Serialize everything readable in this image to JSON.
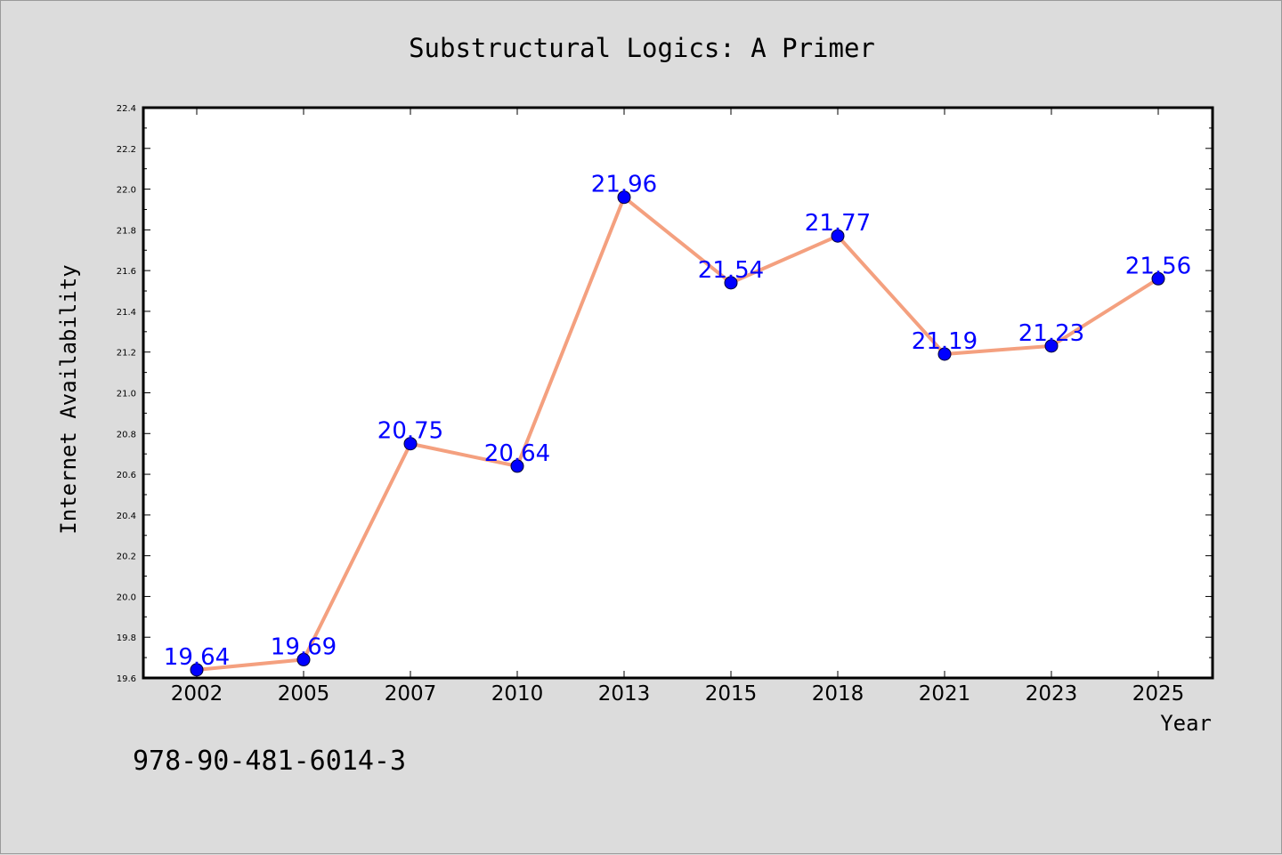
{
  "figure": {
    "background": "#dcdcdc",
    "plot_background": "#ffffff",
    "footer_text": "978-90-481-6014-3"
  },
  "chart_data": {
    "type": "line",
    "title": "Substructural Logics: A Primer",
    "xlabel": "Year",
    "ylabel": "Internet Availability",
    "categories": [
      "2002",
      "2005",
      "2007",
      "2010",
      "2013",
      "2015",
      "2018",
      "2021",
      "2023",
      "2025"
    ],
    "series": [
      {
        "values": [
          19.64,
          19.69,
          20.75,
          20.64,
          21.96,
          21.54,
          21.77,
          21.19,
          21.23,
          21.56
        ],
        "line_color": "#f4a07f",
        "marker_color": "#0000ff"
      }
    ],
    "ylim": [
      19.6,
      22.4
    ],
    "yticks": [
      19.6,
      19.8,
      20.0,
      20.2,
      20.4,
      20.6,
      20.8,
      21.0,
      21.2,
      21.4,
      21.6,
      21.8,
      22.0,
      22.2,
      22.4
    ],
    "ytick_labels": [
      "19.6",
      "19.8",
      "20.0",
      "20.2",
      "20.4",
      "20.6",
      "20.8",
      "21.0",
      "21.2",
      "21.4",
      "21.6",
      "21.8",
      "22.0",
      "22.2",
      "22.4"
    ],
    "data_labels": [
      "19.64",
      "19.69",
      "20.75",
      "20.64",
      "21.96",
      "21.54",
      "21.77",
      "21.19",
      "21.23",
      "21.56"
    ],
    "grid": false,
    "legend": "none"
  }
}
